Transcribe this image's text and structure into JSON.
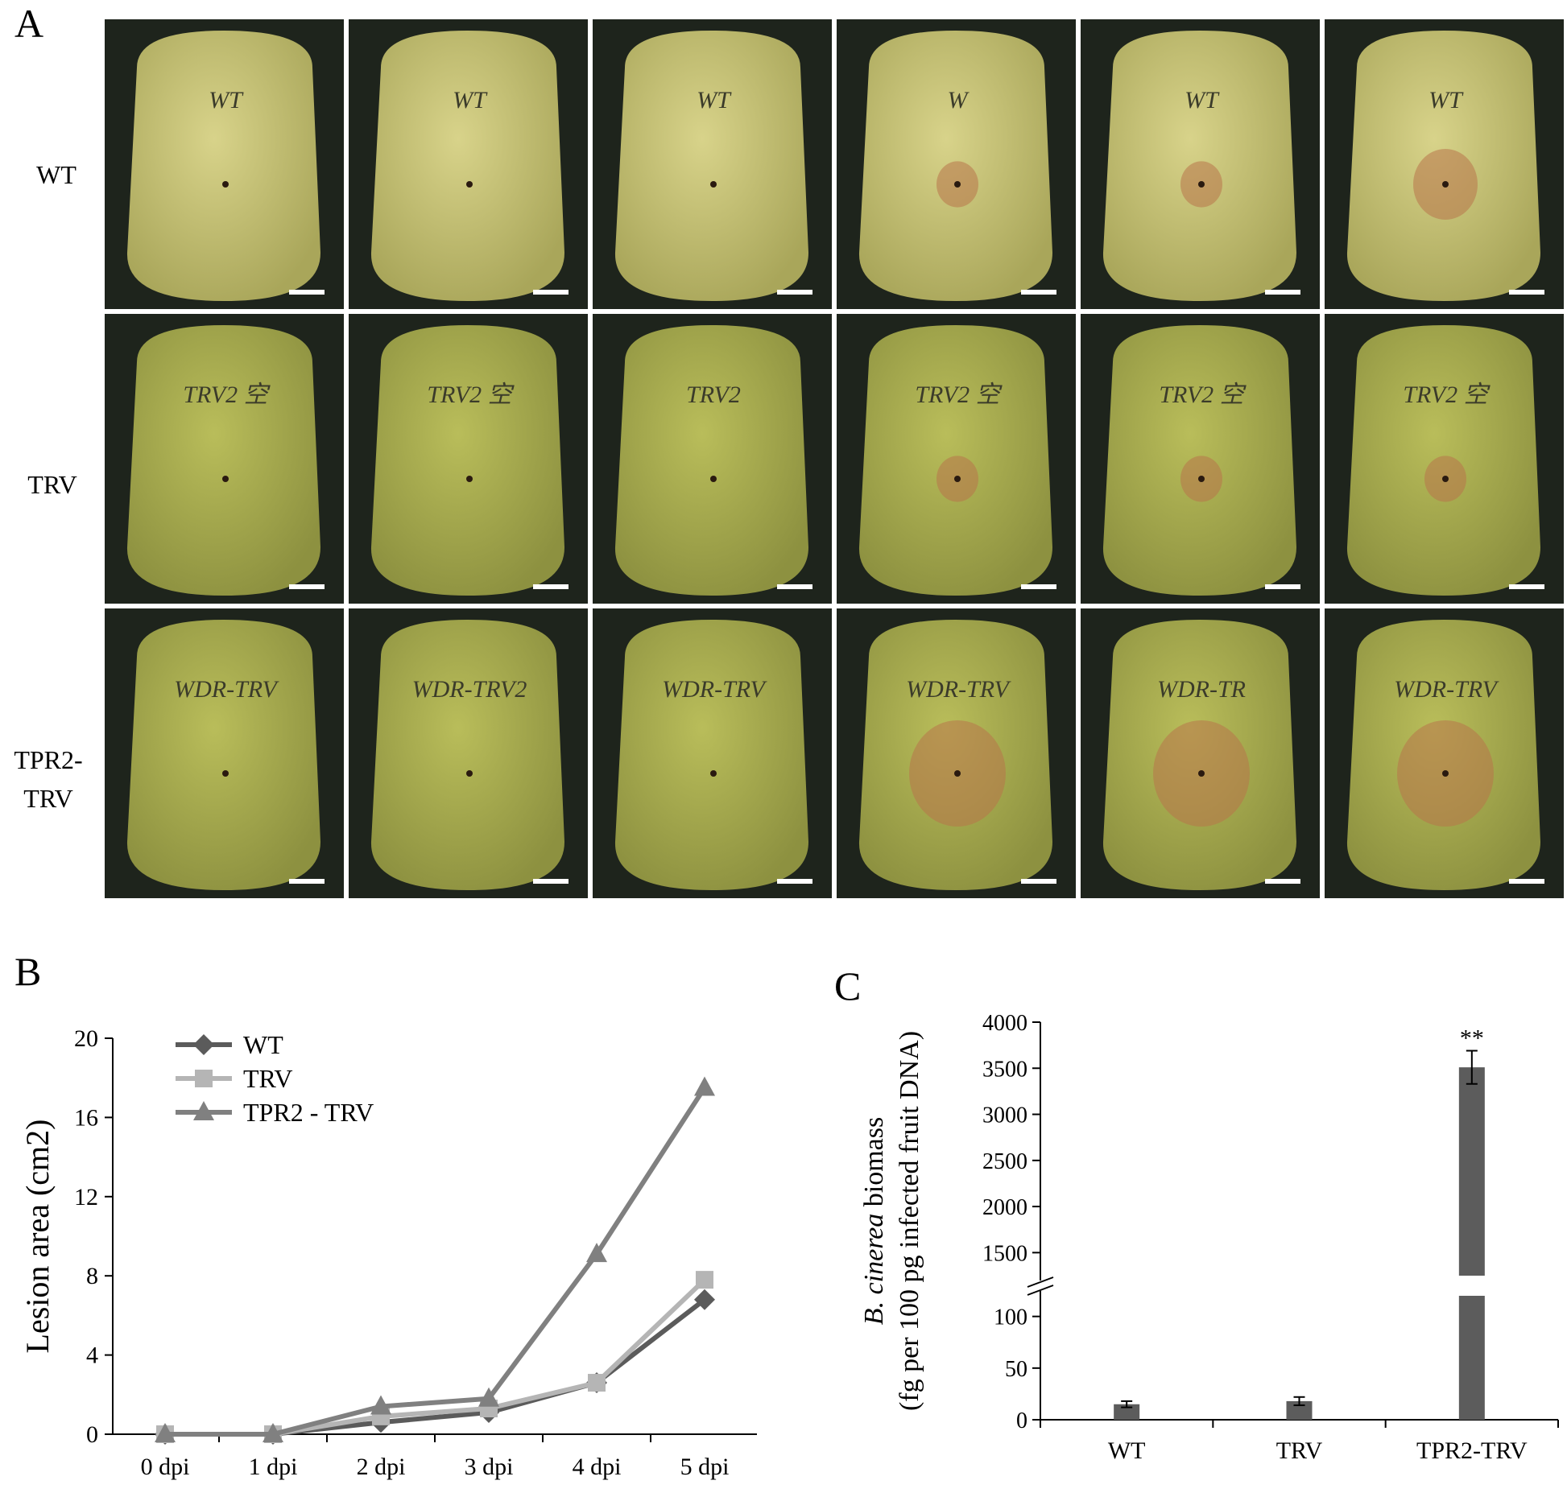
{
  "panel_labels": {
    "a": "A",
    "b": "B",
    "c": "C"
  },
  "photo_rows": [
    {
      "label_line1": "WT",
      "label_line2": "",
      "marks": [
        "WT",
        "WT",
        "WT",
        "W",
        "WT",
        "WT"
      ]
    },
    {
      "label_line1": "TRV",
      "label_line2": "",
      "marks": [
        "TRV2 空",
        "TRV2 空",
        "TRV2",
        "TRV2 空",
        "TRV2 空",
        "TRV2 空"
      ]
    },
    {
      "label_line1": "TPR2-",
      "label_line2": "TRV",
      "marks": [
        "WDR-TRV",
        "WDR-TRV2",
        "WDR-TRV",
        "WDR-TRV",
        "WDR-TR",
        "WDR-TRV"
      ]
    }
  ],
  "colors": {
    "wt": "#5b5b5b",
    "trv": "#b5b5b5",
    "tpr2": "#808080",
    "bar": "#5c5c5c",
    "fruit": "#b9b85f",
    "photo_bg": "#1e241c"
  },
  "chart_data": [
    {
      "type": "line",
      "title": "",
      "xlabel": "",
      "ylabel": "Lesion area (cm2)",
      "categories": [
        "0 dpi",
        "1 dpi",
        "2 dpi",
        "3 dpi",
        "4 dpi",
        "5 dpi"
      ],
      "ylim": [
        0,
        20
      ],
      "yticks": [
        0,
        4,
        8,
        12,
        16,
        20
      ],
      "grid": false,
      "legend_position": "top-left",
      "series": [
        {
          "name": "WT",
          "marker": "diamond",
          "color": "#5b5b5b",
          "values": [
            0,
            0,
            0.6,
            1.1,
            2.6,
            6.8
          ]
        },
        {
          "name": "TRV",
          "marker": "square",
          "color": "#b5b5b5",
          "values": [
            0,
            0,
            0.9,
            1.3,
            2.6,
            7.8
          ]
        },
        {
          "name": "TPR2 - TRV",
          "marker": "triangle",
          "color": "#808080",
          "values": [
            0,
            0,
            1.4,
            1.8,
            9.1,
            17.5
          ]
        }
      ]
    },
    {
      "type": "bar",
      "title": "",
      "xlabel": "",
      "ylabel_italic": "B. cinerea",
      "ylabel_rest": " biomass",
      "ylabel_line2": "(fg per 100 pg infected fruit DNA)",
      "categories": [
        "WT",
        "TRV",
        "TPR2-TRV"
      ],
      "values": [
        15,
        18,
        3510
      ],
      "errors": [
        3,
        4,
        180
      ],
      "annotations": [
        "",
        "",
        "**"
      ],
      "axis_break": true,
      "lower_range": [
        0,
        120
      ],
      "lower_ticks": [
        0,
        50,
        100
      ],
      "upper_range": [
        1250,
        4000
      ],
      "upper_ticks": [
        1500,
        2000,
        2500,
        3000,
        3500,
        4000
      ]
    }
  ]
}
